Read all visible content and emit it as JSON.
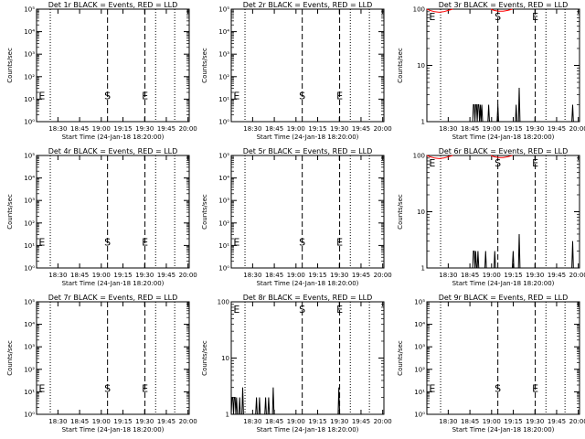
{
  "chart_data": [
    {
      "type": "line",
      "title": "Det 1r BLACK = Events, RED = LLD",
      "xlabel": "Start Time (24-Jan-18 18:20:00)",
      "ylabel": "Counts/sec",
      "yscale": "log",
      "ylim": [
        1,
        100000
      ],
      "xlim": [
        0,
        100
      ],
      "xticks": [
        "18:30",
        "18:45",
        "19:00",
        "19:15",
        "19:30",
        "19:45",
        "20:00"
      ],
      "yticks": [
        "10⁰",
        "10¹",
        "10²",
        "10³",
        "10⁴",
        "10⁵"
      ],
      "markers": [
        "E",
        "S",
        "E"
      ],
      "series": []
    },
    {
      "type": "line",
      "title": "Det 2r BLACK = Events, RED = LLD",
      "xlabel": "Start Time (24-Jan-18 18:20:00)",
      "ylabel": "Counts/sec",
      "yscale": "log",
      "ylim": [
        1,
        100000
      ],
      "xlim": [
        0,
        100
      ],
      "xticks": [
        "18:30",
        "18:45",
        "19:00",
        "19:15",
        "19:30",
        "19:45",
        "20:00"
      ],
      "yticks": [
        "10⁰",
        "10¹",
        "10²",
        "10³",
        "10⁴",
        "10⁵"
      ],
      "markers": [
        "E",
        "S",
        "E"
      ],
      "series": []
    },
    {
      "type": "line",
      "title": "Det 3r BLACK = Events, RED = LLD",
      "xlabel": "Start Time (24-Jan-18 18:20:00)",
      "ylabel": "Counts/sec",
      "yscale": "log",
      "ylim": [
        1,
        100
      ],
      "xlim": [
        0,
        100
      ],
      "xticks": [
        "18:30",
        "18:45",
        "19:00",
        "19:15",
        "19:30",
        "19:45",
        "20:00"
      ],
      "yticks": [
        "1",
        "10",
        "100"
      ],
      "markers": [
        "E",
        "S",
        "E"
      ],
      "series": [
        {
          "name": "Events",
          "color": "#000000",
          "points": [
            [
              30,
              1
            ],
            [
              30.5,
              2
            ],
            [
              31,
              2
            ],
            [
              31.5,
              1
            ],
            [
              32,
              2
            ],
            [
              32.5,
              2
            ],
            [
              33,
              1
            ],
            [
              33.5,
              2
            ],
            [
              34,
              2
            ],
            [
              34.5,
              1
            ],
            [
              35,
              2
            ],
            [
              35.5,
              1
            ],
            [
              36,
              2
            ],
            [
              36.5,
              1
            ],
            [
              40,
              1
            ],
            [
              40.5,
              2
            ],
            [
              41,
              1
            ],
            [
              46,
              1
            ],
            [
              46.5,
              2
            ],
            [
              47,
              1
            ],
            [
              58,
              1
            ],
            [
              58.5,
              2
            ],
            [
              59,
              1
            ],
            [
              60,
              1
            ],
            [
              60.5,
              4
            ],
            [
              61,
              1
            ],
            [
              95,
              1
            ],
            [
              95.5,
              2
            ],
            [
              96,
              1
            ]
          ]
        },
        {
          "name": "LLD",
          "color": "#ff0000",
          "points": [
            [
              0,
              100
            ],
            [
              2,
              95
            ],
            [
              5,
              90
            ],
            [
              8,
              88
            ],
            [
              11,
              90
            ],
            [
              14,
              95
            ],
            [
              17,
              100
            ]
          ]
        },
        {
          "name": "LLD",
          "color": "#ff0000",
          "points": [
            [
              42,
              100
            ],
            [
              44,
              95
            ],
            [
              47,
              92
            ],
            [
              50,
              92
            ],
            [
              53,
              95
            ],
            [
              56,
              100
            ]
          ]
        }
      ]
    },
    {
      "type": "line",
      "title": "Det 4r BLACK = Events, RED = LLD",
      "xlabel": "Start Time (24-Jan-18 18:20:00)",
      "ylabel": "Counts/sec",
      "yscale": "log",
      "ylim": [
        1,
        100000
      ],
      "xlim": [
        0,
        100
      ],
      "xticks": [
        "18:30",
        "18:45",
        "19:00",
        "19:15",
        "19:30",
        "19:45",
        "20:00"
      ],
      "yticks": [
        "10⁰",
        "10¹",
        "10²",
        "10³",
        "10⁴",
        "10⁵"
      ],
      "markers": [
        "E",
        "S",
        "E"
      ],
      "series": []
    },
    {
      "type": "line",
      "title": "Det 5r BLACK = Events, RED = LLD",
      "xlabel": "Start Time (24-Jan-18 18:20:00)",
      "ylabel": "Counts/sec",
      "yscale": "log",
      "ylim": [
        1,
        100000
      ],
      "xlim": [
        0,
        100
      ],
      "xticks": [
        "18:30",
        "18:45",
        "19:00",
        "19:15",
        "19:30",
        "19:45",
        "20:00"
      ],
      "yticks": [
        "10⁰",
        "10¹",
        "10²",
        "10³",
        "10⁴",
        "10⁵"
      ],
      "markers": [
        "E",
        "S",
        "E"
      ],
      "series": []
    },
    {
      "type": "line",
      "title": "Det 6r BLACK = Events, RED = LLD",
      "xlabel": "Start Time (24-Jan-18 18:20:00)",
      "ylabel": "Counts/sec",
      "yscale": "log",
      "ylim": [
        1,
        100
      ],
      "xlim": [
        0,
        100
      ],
      "xticks": [
        "18:30",
        "18:45",
        "19:00",
        "19:15",
        "19:30",
        "19:45",
        "20:00"
      ],
      "yticks": [
        "1",
        "10",
        "100"
      ],
      "markers": [
        "E",
        "S",
        "E"
      ],
      "series": [
        {
          "name": "Events",
          "color": "#000000",
          "points": [
            [
              30,
              1
            ],
            [
              30.5,
              2
            ],
            [
              31,
              2
            ],
            [
              31.5,
              1
            ],
            [
              32,
              2
            ],
            [
              32.5,
              1
            ],
            [
              33,
              1
            ],
            [
              33.5,
              2
            ],
            [
              34,
              1
            ],
            [
              38,
              1
            ],
            [
              38.5,
              2
            ],
            [
              39,
              1
            ],
            [
              44,
              1
            ],
            [
              44.5,
              2
            ],
            [
              45,
              1
            ],
            [
              56,
              1
            ],
            [
              56.5,
              2
            ],
            [
              57,
              1
            ],
            [
              60,
              1
            ],
            [
              60.5,
              4
            ],
            [
              61,
              1
            ],
            [
              95,
              1
            ],
            [
              95.5,
              3
            ],
            [
              96,
              1
            ]
          ]
        },
        {
          "name": "LLD",
          "color": "#ff0000",
          "points": [
            [
              0,
              100
            ],
            [
              2,
              95
            ],
            [
              5,
              90
            ],
            [
              8,
              88
            ],
            [
              11,
              90
            ],
            [
              14,
              95
            ],
            [
              17,
              100
            ]
          ]
        },
        {
          "name": "LLD",
          "color": "#ff0000",
          "points": [
            [
              42,
              100
            ],
            [
              44,
              95
            ],
            [
              47,
              92
            ],
            [
              50,
              92
            ],
            [
              53,
              95
            ],
            [
              56,
              100
            ]
          ]
        }
      ]
    },
    {
      "type": "line",
      "title": "Det 7r BLACK = Events, RED = LLD",
      "xlabel": "Start Time (24-Jan-18 18:20:00)",
      "ylabel": "Counts/sec",
      "yscale": "log",
      "ylim": [
        1,
        100000
      ],
      "xlim": [
        0,
        100
      ],
      "xticks": [
        "18:30",
        "18:45",
        "19:00",
        "19:15",
        "19:30",
        "19:45",
        "20:00"
      ],
      "yticks": [
        "10⁰",
        "10¹",
        "10²",
        "10³",
        "10⁴",
        "10⁵"
      ],
      "markers": [
        "E",
        "S",
        "E"
      ],
      "series": []
    },
    {
      "type": "line",
      "title": "Det 8r BLACK = Events, RED = LLD",
      "xlabel": "Start Time (24-Jan-18 18:20:00)",
      "ylabel": "Counts/sec",
      "yscale": "log",
      "ylim": [
        1,
        100
      ],
      "xlim": [
        0,
        100
      ],
      "xticks": [
        "18:30",
        "18:45",
        "19:00",
        "19:15",
        "19:30",
        "19:45",
        "20:00"
      ],
      "yticks": [
        "1",
        "10",
        "100"
      ],
      "markers": [
        "E",
        "S",
        "E"
      ],
      "series": [
        {
          "name": "Events",
          "color": "#000000",
          "points": [
            [
              0,
              1
            ],
            [
              0.5,
              2
            ],
            [
              1,
              2
            ],
            [
              1.5,
              1
            ],
            [
              2,
              2
            ],
            [
              2.5,
              2
            ],
            [
              3,
              1
            ],
            [
              3.5,
              2
            ],
            [
              4,
              1
            ],
            [
              5,
              1
            ],
            [
              5.5,
              2
            ],
            [
              6,
              1
            ],
            [
              7,
              1
            ],
            [
              7.5,
              3
            ],
            [
              8,
              1
            ],
            [
              16,
              1
            ],
            [
              16.5,
              2
            ],
            [
              17,
              1
            ],
            [
              18,
              1
            ],
            [
              18.5,
              2
            ],
            [
              19,
              1
            ],
            [
              22,
              1
            ],
            [
              22.5,
              2
            ],
            [
              23,
              1
            ],
            [
              24,
              1
            ],
            [
              24.5,
              2
            ],
            [
              25,
              1
            ],
            [
              27,
              1
            ],
            [
              27.5,
              3
            ],
            [
              28,
              1
            ],
            [
              70,
              1
            ],
            [
              70.5,
              3
            ],
            [
              71,
              1
            ]
          ]
        }
      ]
    },
    {
      "type": "line",
      "title": "Det 9r BLACK = Events, RED = LLD",
      "xlabel": "Start Time (24-Jan-18 18:20:00)",
      "ylabel": "Counts/sec",
      "yscale": "log",
      "ylim": [
        1,
        100000
      ],
      "xlim": [
        0,
        100
      ],
      "xticks": [
        "18:30",
        "18:45",
        "19:00",
        "19:15",
        "19:30",
        "19:45",
        "20:00"
      ],
      "yticks": [
        "10⁰",
        "10¹",
        "10²",
        "10³",
        "10⁴",
        "10⁵"
      ],
      "markers": [
        "E",
        "S",
        "E"
      ],
      "series": []
    }
  ]
}
